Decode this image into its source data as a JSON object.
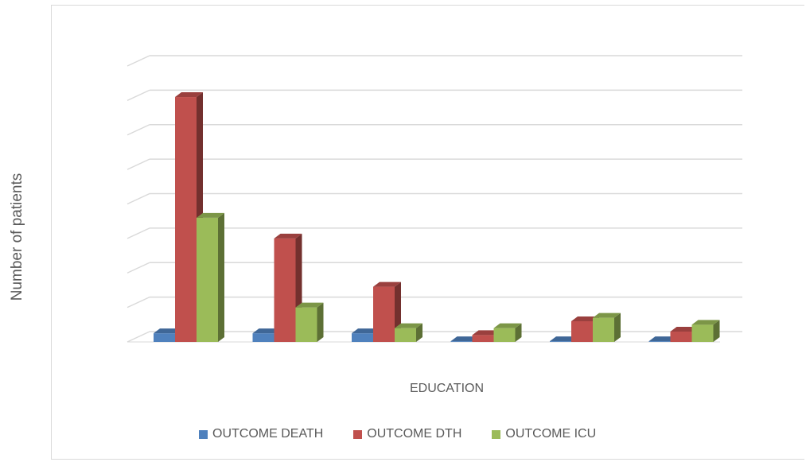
{
  "chart_data": {
    "type": "bar",
    "title": "",
    "xlabel": "EDUCATION",
    "ylabel": "Number of patients",
    "categories": [
      "",
      "",
      "",
      "",
      "",
      ""
    ],
    "ylim": [
      0,
      8
    ],
    "grid": true,
    "legend_position": "bottom",
    "series": [
      {
        "name": "OUTCOME DEATH",
        "color": "#4f81bd",
        "values": [
          0.25,
          0.25,
          0.25,
          0.02,
          0.02,
          0.02
        ]
      },
      {
        "name": "OUTCOME DTH",
        "color": "#c0504d",
        "values": [
          7.1,
          3.0,
          1.6,
          0.2,
          0.6,
          0.3
        ]
      },
      {
        "name": "OUTCOME ICU",
        "color": "#9bbb59",
        "values": [
          3.6,
          1.0,
          0.4,
          0.4,
          0.7,
          0.5
        ]
      }
    ]
  }
}
